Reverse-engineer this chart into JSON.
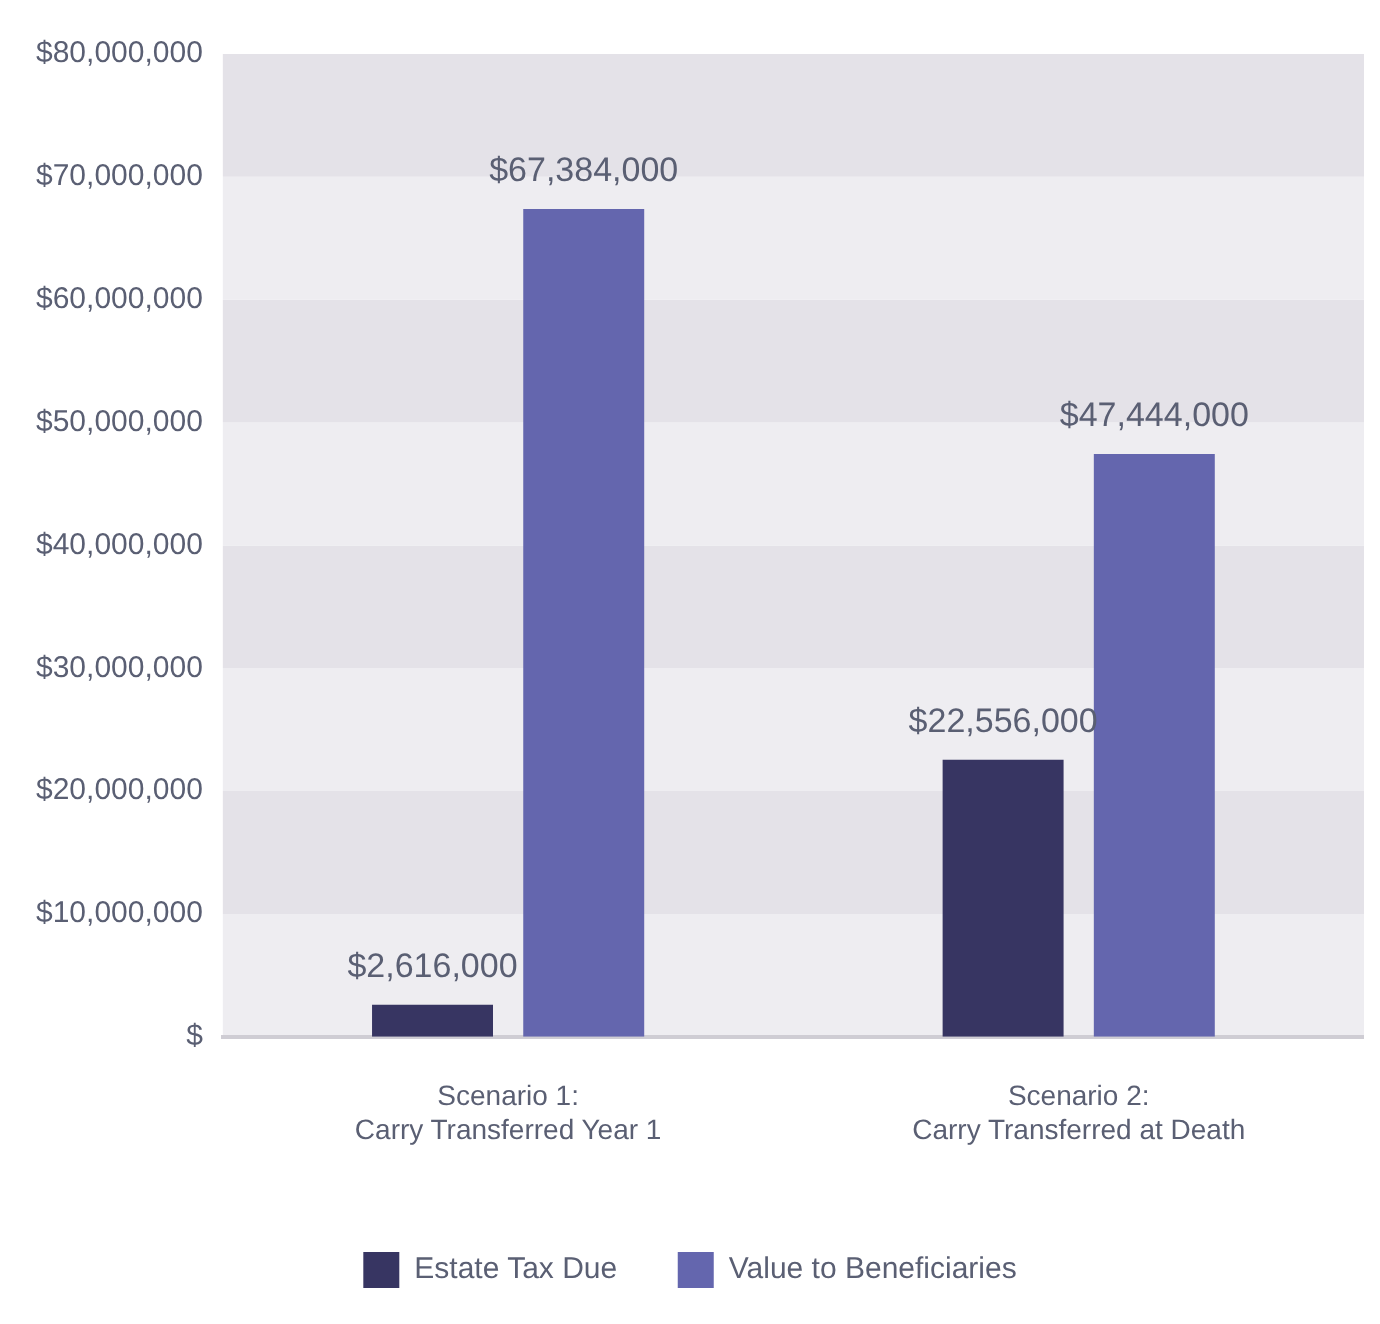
{
  "chart_data": {
    "type": "bar",
    "categories": [
      "Scenario 1:\nCarry Transferred Year 1",
      "Scenario 2:\nCarry Transferred at Death"
    ],
    "series": [
      {
        "name": "Estate Tax Due",
        "color": "#373562",
        "values": [
          2616000,
          22556000
        ]
      },
      {
        "name": "Value to Beneficiaries",
        "color": "#6466ae",
        "values": [
          67384000,
          47444000
        ]
      }
    ],
    "value_labels": [
      [
        "$2,616,000",
        "$22,556,000"
      ],
      [
        "$67,384,000",
        "$47,444,000"
      ]
    ],
    "ylim": [
      0,
      80000000
    ],
    "yticks": [
      {
        "value": 0,
        "label": "$"
      },
      {
        "value": 10000000,
        "label": "$10,000,000"
      },
      {
        "value": 20000000,
        "label": "$20,000,000"
      },
      {
        "value": 30000000,
        "label": "$30,000,000"
      },
      {
        "value": 40000000,
        "label": "$40,000,000"
      },
      {
        "value": 50000000,
        "label": "$50,000,000"
      },
      {
        "value": 60000000,
        "label": "$60,000,000"
      },
      {
        "value": 70000000,
        "label": "$70,000,000"
      },
      {
        "value": 80000000,
        "label": "$80,000,000"
      }
    ],
    "legend": "bottom"
  }
}
